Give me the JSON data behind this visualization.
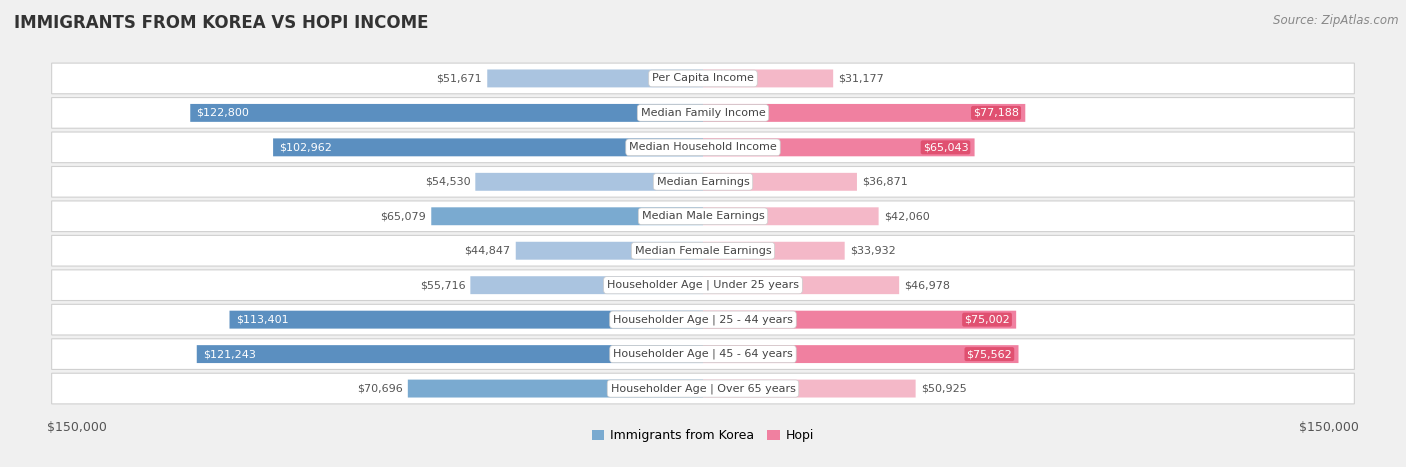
{
  "title": "IMMIGRANTS FROM KOREA VS HOPI INCOME",
  "source": "Source: ZipAtlas.com",
  "categories": [
    "Per Capita Income",
    "Median Family Income",
    "Median Household Income",
    "Median Earnings",
    "Median Male Earnings",
    "Median Female Earnings",
    "Householder Age | Under 25 years",
    "Householder Age | 25 - 44 years",
    "Householder Age | 45 - 64 years",
    "Householder Age | Over 65 years"
  ],
  "korea_values": [
    51671,
    122800,
    102962,
    54530,
    65079,
    44847,
    55716,
    113401,
    121243,
    70696
  ],
  "hopi_values": [
    31177,
    77188,
    65043,
    36871,
    42060,
    33932,
    46978,
    75002,
    75562,
    50925
  ],
  "korea_labels": [
    "$51,671",
    "$122,800",
    "$102,962",
    "$54,530",
    "$65,079",
    "$44,847",
    "$55,716",
    "$113,401",
    "$121,243",
    "$70,696"
  ],
  "hopi_labels": [
    "$31,177",
    "$77,188",
    "$65,043",
    "$36,871",
    "$42,060",
    "$33,932",
    "$46,978",
    "$75,002",
    "$75,562",
    "$50,925"
  ],
  "korea_color_light": "#aac4e0",
  "korea_color_mid": "#7aaad0",
  "korea_color_dark": "#5b8fc0",
  "hopi_color_light": "#f4b8c8",
  "hopi_color_mid": "#f080a0",
  "hopi_color_dark": "#e05070",
  "max_value": 150000,
  "background_color": "#f0f0f0",
  "row_bg_light": "#fafafa",
  "row_bg_dark": "#eeeeee",
  "legend_korea": "Immigrants from Korea",
  "legend_hopi": "Hopi",
  "xlabel_left": "$150,000",
  "xlabel_right": "$150,000",
  "korea_inside_threshold": 90000,
  "hopi_inside_threshold": 65000
}
